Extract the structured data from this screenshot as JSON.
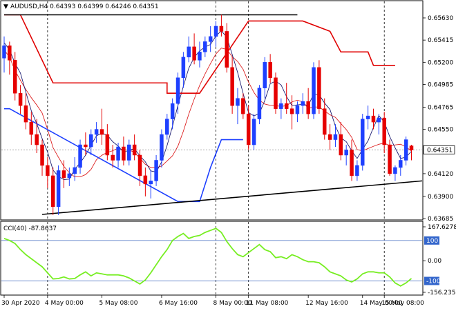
{
  "header": {
    "symbol_line": "AUDUSD,H4  0.64393 0.64399 0.64246 0.64351",
    "arrow_glyph": "▼"
  },
  "colors": {
    "bull_candle": "#1e40ff",
    "bear_candle": "#e60000",
    "price_channel": "#e00000",
    "bb_line": "#1b1b70",
    "ma_red": "#dd2020",
    "support_blue": "#1e40ff",
    "trendline": "#000000",
    "cci_line": "#77ee22",
    "cci_level": "#6688cc",
    "price_label_bg": "#ffffff",
    "cci_label_bg": "#3366cc"
  },
  "chart_data": [
    {
      "type": "candlestick",
      "title": "AUDUSD,H4",
      "ohlc_header": {
        "open": 0.64393,
        "high": 0.64399,
        "low": 0.64246,
        "close": 0.64351
      },
      "current_price_label": "0.64351",
      "ylim": [
        0.63685,
        0.6567
      ],
      "y_ticks": [
        "0.65630",
        "0.65415",
        "0.65200",
        "0.64985",
        "0.64765",
        "0.64550",
        "0.64351",
        "0.64120",
        "0.63900",
        "0.63685"
      ],
      "x_ticks": [
        "30 Apr 2020",
        "4 May 00:00",
        "5 May 08:00",
        "6 May 16:00",
        "8 May 00:00",
        "11 May 08:00",
        "12 May 16:00",
        "14 May 00:00",
        "15 May 08:00"
      ],
      "grid": false,
      "vertical_separators_at_labels": [
        "4 May 00:00",
        "8 May 00:00",
        "11 May 08:00",
        "15 May 08:00"
      ],
      "candles": [
        [
          0.6524,
          0.6545,
          0.651,
          0.6536
        ],
        [
          0.6536,
          0.654,
          0.6508,
          0.6522
        ],
        [
          0.6522,
          0.653,
          0.6483,
          0.649
        ],
        [
          0.649,
          0.6498,
          0.647,
          0.6478
        ],
        [
          0.6478,
          0.649,
          0.6455,
          0.6462
        ],
        [
          0.6462,
          0.6472,
          0.644,
          0.645
        ],
        [
          0.645,
          0.6465,
          0.6432,
          0.644
        ],
        [
          0.644,
          0.6445,
          0.641,
          0.642
        ],
        [
          0.642,
          0.6428,
          0.6398,
          0.641
        ],
        [
          0.641,
          0.6418,
          0.6372,
          0.638
        ],
        [
          0.638,
          0.642,
          0.6372,
          0.6415
        ],
        [
          0.6415,
          0.6425,
          0.6398,
          0.6408
        ],
        [
          0.6408,
          0.6418,
          0.64,
          0.6412
        ],
        [
          0.6412,
          0.6428,
          0.6405,
          0.6418
        ],
        [
          0.6418,
          0.6445,
          0.6412,
          0.644
        ],
        [
          0.644,
          0.6452,
          0.643,
          0.6438
        ],
        [
          0.6438,
          0.6455,
          0.643,
          0.645
        ],
        [
          0.645,
          0.6462,
          0.6442,
          0.6455
        ],
        [
          0.6455,
          0.6475,
          0.644,
          0.645
        ],
        [
          0.645,
          0.646,
          0.6425,
          0.643
        ],
        [
          0.643,
          0.644,
          0.6418,
          0.6425
        ],
        [
          0.6425,
          0.6442,
          0.6418,
          0.6438
        ],
        [
          0.6438,
          0.6448,
          0.642,
          0.6425
        ],
        [
          0.6425,
          0.6445,
          0.642,
          0.644
        ],
        [
          0.644,
          0.645,
          0.6425,
          0.643
        ],
        [
          0.643,
          0.6435,
          0.64,
          0.641
        ],
        [
          0.641,
          0.6418,
          0.639,
          0.6402
        ],
        [
          0.6402,
          0.6415,
          0.6388,
          0.6405
        ],
        [
          0.6405,
          0.643,
          0.64,
          0.6425
        ],
        [
          0.6425,
          0.6455,
          0.6418,
          0.645
        ],
        [
          0.645,
          0.647,
          0.6445,
          0.6465
        ],
        [
          0.6465,
          0.6485,
          0.6455,
          0.648
        ],
        [
          0.648,
          0.651,
          0.647,
          0.6505
        ],
        [
          0.6505,
          0.653,
          0.6495,
          0.6525
        ],
        [
          0.6525,
          0.6545,
          0.652,
          0.6535
        ],
        [
          0.6535,
          0.6548,
          0.6518,
          0.6522
        ],
        [
          0.6522,
          0.654,
          0.6515,
          0.653
        ],
        [
          0.653,
          0.6545,
          0.6525,
          0.654
        ],
        [
          0.654,
          0.6555,
          0.653,
          0.6545
        ],
        [
          0.6545,
          0.656,
          0.6535,
          0.6555
        ],
        [
          0.6555,
          0.6566,
          0.6545,
          0.655
        ],
        [
          0.655,
          0.6558,
          0.651,
          0.6515
        ],
        [
          0.6515,
          0.6525,
          0.647,
          0.6478
        ],
        [
          0.6478,
          0.6495,
          0.646,
          0.6485
        ],
        [
          0.6485,
          0.649,
          0.6465,
          0.647
        ],
        [
          0.647,
          0.6478,
          0.6435,
          0.644
        ],
        [
          0.644,
          0.647,
          0.6435,
          0.6465
        ],
        [
          0.6465,
          0.6498,
          0.646,
          0.6495
        ],
        [
          0.6495,
          0.6525,
          0.6485,
          0.652
        ],
        [
          0.652,
          0.6528,
          0.65,
          0.6505
        ],
        [
          0.6505,
          0.651,
          0.647,
          0.6475
        ],
        [
          0.6475,
          0.6485,
          0.6465,
          0.648
        ],
        [
          0.648,
          0.65,
          0.647,
          0.6475
        ],
        [
          0.6475,
          0.6488,
          0.6455,
          0.647
        ],
        [
          0.647,
          0.6482,
          0.6462,
          0.6478
        ],
        [
          0.6478,
          0.649,
          0.647,
          0.6482
        ],
        [
          0.6482,
          0.6495,
          0.6465,
          0.647
        ],
        [
          0.647,
          0.652,
          0.6465,
          0.6515
        ],
        [
          0.6515,
          0.6522,
          0.647,
          0.6475
        ],
        [
          0.6475,
          0.6485,
          0.6445,
          0.645
        ],
        [
          0.645,
          0.646,
          0.6435,
          0.6445
        ],
        [
          0.6445,
          0.646,
          0.6438,
          0.645
        ],
        [
          0.645,
          0.6462,
          0.6425,
          0.643
        ],
        [
          0.643,
          0.644,
          0.642,
          0.6435
        ],
        [
          0.6435,
          0.6445,
          0.6405,
          0.641
        ],
        [
          0.641,
          0.6425,
          0.6405,
          0.642
        ],
        [
          0.642,
          0.647,
          0.6415,
          0.6465
        ],
        [
          0.6465,
          0.6478,
          0.6455,
          0.6468
        ],
        [
          0.6468,
          0.6475,
          0.6455,
          0.6462
        ],
        [
          0.6462,
          0.647,
          0.645,
          0.6466
        ],
        [
          0.6466,
          0.6472,
          0.6432,
          0.644
        ],
        [
          0.644,
          0.6445,
          0.641,
          0.6412
        ],
        [
          0.6412,
          0.642,
          0.6405,
          0.6418
        ],
        [
          0.6418,
          0.643,
          0.641,
          0.6425
        ],
        [
          0.6425,
          0.6448,
          0.642,
          0.6445
        ],
        [
          0.6439,
          0.644,
          0.6425,
          0.6435
        ]
      ],
      "overlays": {
        "upper_channel": [
          [
            0,
            0.6566
          ],
          [
            3,
            0.6566
          ],
          [
            9,
            0.65
          ],
          [
            30,
            0.65
          ],
          [
            30,
            0.649
          ],
          [
            36,
            0.649
          ],
          [
            45,
            0.656
          ],
          [
            55,
            0.656
          ],
          [
            60,
            0.655
          ],
          [
            62,
            0.653
          ],
          [
            67,
            0.653
          ],
          [
            68,
            0.6517
          ],
          [
            72,
            0.6517
          ]
        ],
        "support_level": [
          [
            0,
            0.6475
          ],
          [
            1,
            0.6475
          ],
          [
            32,
            0.6385
          ],
          [
            36,
            0.6385
          ],
          [
            38,
            0.6418
          ],
          [
            40,
            0.6445
          ],
          [
            44,
            0.6445
          ]
        ],
        "trendline_top": [
          [
            0,
            0.6566
          ],
          [
            54,
            0.6566
          ]
        ],
        "trendline_bottom": [
          [
            7,
            0.63725
          ],
          [
            77,
            0.6405
          ]
        ]
      }
    },
    {
      "type": "line",
      "title": "CCI(40) -87.8637",
      "series": [
        {
          "name": "CCI(40)",
          "values": [
            110,
            100,
            85,
            55,
            30,
            10,
            -10,
            -30,
            -60,
            -90,
            -88,
            -80,
            -90,
            -88,
            -70,
            -55,
            -75,
            -60,
            -65,
            -70,
            -70,
            -70,
            -75,
            -85,
            -100,
            -115,
            -95,
            -60,
            -20,
            20,
            55,
            100,
            120,
            135,
            110,
            120,
            125,
            140,
            150,
            160,
            140,
            95,
            60,
            30,
            20,
            40,
            60,
            80,
            55,
            45,
            15,
            20,
            10,
            30,
            20,
            5,
            -5,
            -5,
            -10,
            -30,
            -55,
            -65,
            -75,
            -95,
            -105,
            -90,
            -65,
            -55,
            -55,
            -60,
            -60,
            -80,
            -110,
            -125,
            -110,
            -88
          ]
        }
      ],
      "ylim": [
        -156.2351,
        167.6278
      ],
      "levels": [
        "100",
        "0.00",
        "-100"
      ],
      "y_labels": [
        "167.6278",
        "100",
        "0.00",
        "-100",
        "-156.2351"
      ]
    }
  ]
}
